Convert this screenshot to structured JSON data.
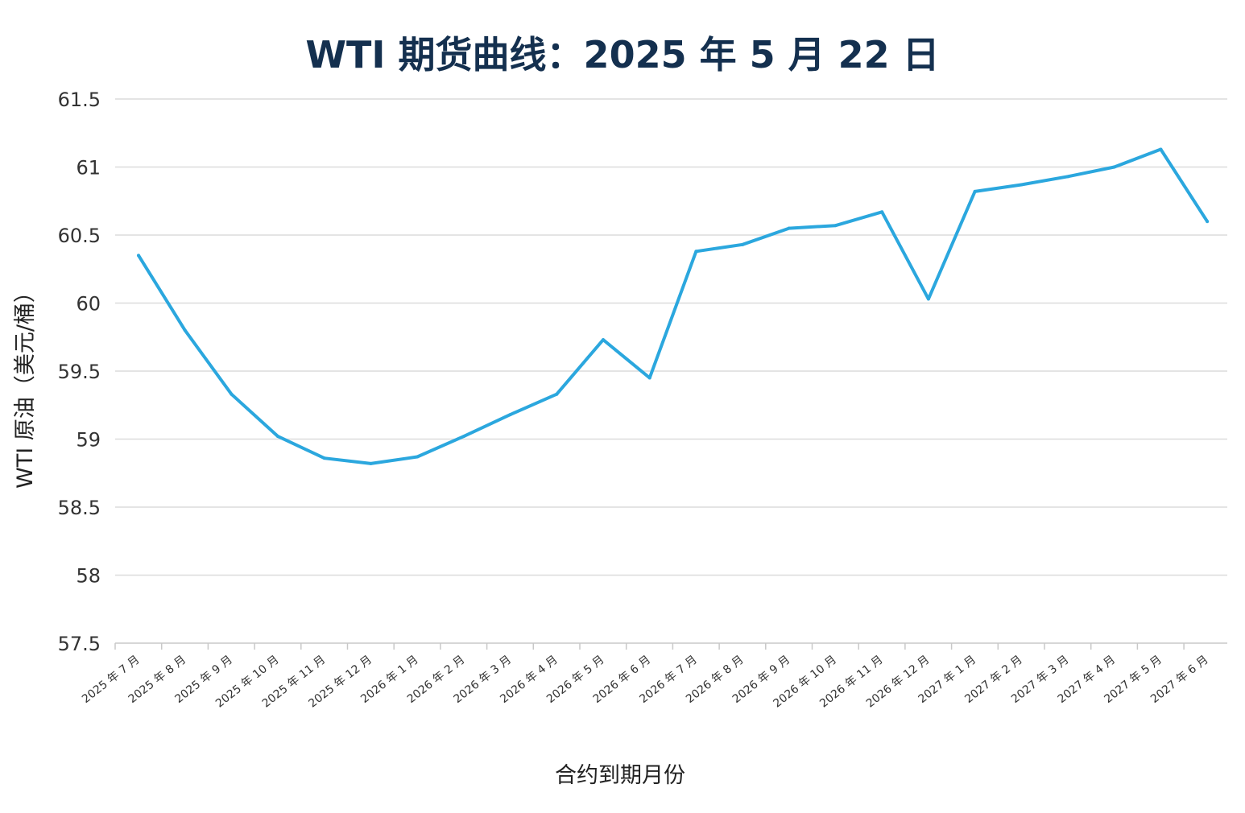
{
  "chart_data": {
    "type": "line",
    "title": "WTI 期货曲线：2025 年 5 月 22 日",
    "xlabel": "合约到期月份",
    "ylabel": "WTI 原油（美元/桶）",
    "ylim": [
      57.5,
      61.5
    ],
    "yticks": [
      "57.5",
      "58",
      "58.5",
      "59",
      "59.5",
      "60",
      "60.5",
      "61",
      "61.5"
    ],
    "grid": true,
    "legend": "none",
    "line_color": "#2ba7de",
    "categories": [
      "2025 年 7 月",
      "2025 年 8 月",
      "2025 年 9 月",
      "2025 年 10 月",
      "2025 年 11 月",
      "2025 年 12 月",
      "2026 年 1 月",
      "2026 年 2 月",
      "2026 年 3 月",
      "2026 年 4 月",
      "2026 年 5 月",
      "2026 年 6 月",
      "2026 年 7 月",
      "2026 年 8 月",
      "2026 年 9 月",
      "2026 年 10 月",
      "2026 年 11 月",
      "2026 年 12 月",
      "2027 年 1 月",
      "2027 年 2 月",
      "2027 年 3 月",
      "2027 年 4 月",
      "2027 年 5 月",
      "2027 年 6 月"
    ],
    "values": [
      60.35,
      59.8,
      59.33,
      59.02,
      58.86,
      58.82,
      58.87,
      59.02,
      59.18,
      59.33,
      59.73,
      59.45,
      60.38,
      60.43,
      60.55,
      60.57,
      60.67,
      60.03,
      60.82,
      60.87,
      60.93,
      61.0,
      61.13,
      60.6
    ]
  }
}
